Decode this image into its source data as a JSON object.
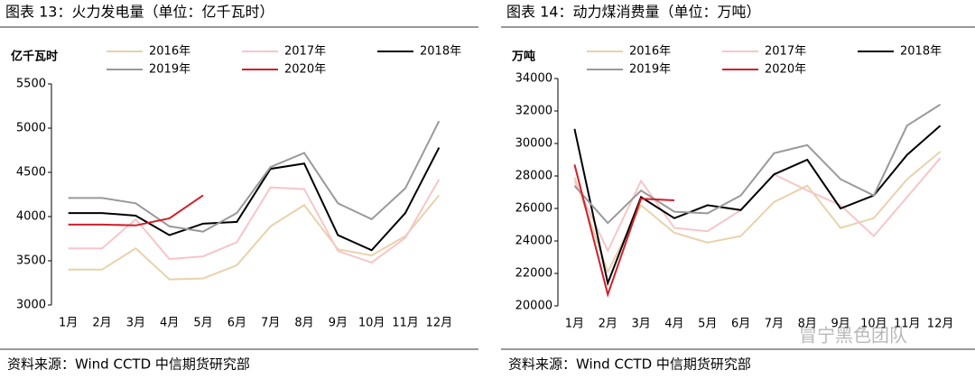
{
  "chart_data": [
    {
      "type": "line",
      "title": "图表 13：火力发电量（单位：亿千瓦时）",
      "ylabel": "亿千瓦时",
      "source": "资料来源：Wind CCTD 中信期货研究部",
      "categories": [
        "1月",
        "2月",
        "3月",
        "4月",
        "5月",
        "6月",
        "7月",
        "8月",
        "9月",
        "10月",
        "11月",
        "12月"
      ],
      "ylim": [
        3000,
        5500
      ],
      "yticks": [
        3000,
        3500,
        4000,
        4500,
        5000,
        5500
      ],
      "series": [
        {
          "name": "2016年",
          "color": "#e8d2ab",
          "values": [
            3400,
            3400,
            3640,
            3290,
            3300,
            3450,
            3890,
            4130,
            3630,
            3560,
            3780,
            4240
          ]
        },
        {
          "name": "2017年",
          "color": "#f6c6c8",
          "values": [
            3640,
            3640,
            3970,
            3520,
            3550,
            3710,
            4330,
            4310,
            3610,
            3480,
            3760,
            4420
          ]
        },
        {
          "name": "2018年",
          "color": "#000000",
          "values": [
            4040,
            4040,
            4010,
            3790,
            3920,
            3940,
            4540,
            4600,
            3790,
            3620,
            4040,
            4780
          ]
        },
        {
          "name": "2019年",
          "color": "#999999",
          "values": [
            4210,
            4210,
            4150,
            3890,
            3830,
            4040,
            4560,
            4720,
            4150,
            3970,
            4320,
            5080
          ]
        },
        {
          "name": "2020年",
          "color": "#d0202a",
          "values": [
            3910,
            3910,
            3900,
            3980,
            4240,
            null,
            null,
            null,
            null,
            null,
            null,
            null
          ]
        }
      ]
    },
    {
      "type": "line",
      "title": "图表 14：动力煤消费量（单位：万吨）",
      "ylabel": "万吨",
      "source": "资料来源：Wind CCTD 中信期货研究部",
      "categories": [
        "1月",
        "2月",
        "3月",
        "4月",
        "5月",
        "6月",
        "7月",
        "8月",
        "9月",
        "10月",
        "11月",
        "12月"
      ],
      "ylim": [
        20000,
        34000
      ],
      "yticks": [
        20000,
        22000,
        24000,
        26000,
        28000,
        30000,
        32000,
        34000
      ],
      "series": [
        {
          "name": "2016年",
          "color": "#e8d2ab",
          "values": [
            27900,
            22100,
            26200,
            24500,
            23900,
            24300,
            26400,
            27400,
            24800,
            25400,
            27800,
            29500
          ]
        },
        {
          "name": "2017年",
          "color": "#f6c6c8",
          "values": [
            27700,
            23400,
            27700,
            24800,
            24600,
            25900,
            28100,
            27100,
            26200,
            24300,
            26700,
            29100
          ]
        },
        {
          "name": "2018年",
          "color": "#000000",
          "values": [
            30900,
            21400,
            26700,
            25400,
            26200,
            25900,
            28100,
            29000,
            26000,
            26800,
            29300,
            31100
          ]
        },
        {
          "name": "2019年",
          "color": "#999999",
          "values": [
            27400,
            25100,
            27100,
            25800,
            25700,
            26800,
            29400,
            29900,
            27800,
            26800,
            31100,
            32400
          ]
        },
        {
          "name": "2020年",
          "color": "#d0202a",
          "values": [
            28700,
            20700,
            26600,
            26500,
            null,
            null,
            null,
            null,
            null,
            null,
            null,
            null
          ]
        }
      ]
    }
  ],
  "watermark": "冒宁黑色团队"
}
